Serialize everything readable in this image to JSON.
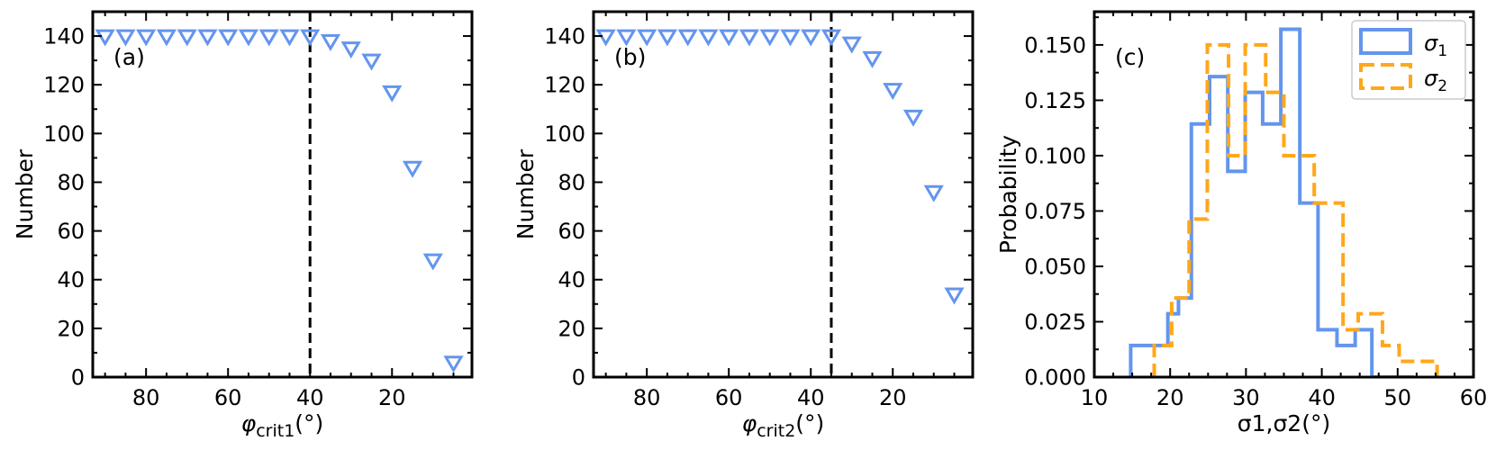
{
  "colors": {
    "marker": "#6495ed",
    "sigma1": "#6495ed",
    "sigma2": "#ffa71a",
    "vline": "#000000"
  },
  "chart_data": [
    {
      "type": "scatter",
      "panel_label": "(a)",
      "xlabel": "φcrit1(°)",
      "xlabel_symbol": "φ",
      "xlabel_sub": "crit1",
      "xlabel_unit": "(°)",
      "ylabel": "Number",
      "xlim": [
        93,
        0.5
      ],
      "ylim": [
        0,
        150
      ],
      "xticks": [
        80,
        60,
        40,
        20
      ],
      "yticks": [
        0,
        20,
        40,
        60,
        80,
        100,
        120,
        140
      ],
      "xtick_labels": [
        "80",
        "60",
        "40",
        "20"
      ],
      "ytick_labels": [
        "0",
        "20",
        "40",
        "60",
        "80",
        "100",
        "120",
        "140"
      ],
      "marker": "triangle-down-open",
      "vline": 40,
      "series": [
        {
          "x": [
            90,
            85,
            80,
            75,
            70,
            65,
            60,
            55,
            50,
            45,
            40,
            35,
            30,
            25,
            20,
            15,
            10,
            5
          ],
          "values": [
            140,
            140,
            140,
            140,
            140,
            140,
            140,
            140,
            140,
            140,
            140,
            138,
            135,
            130,
            117,
            86,
            48,
            6
          ]
        }
      ]
    },
    {
      "type": "scatter",
      "panel_label": "(b)",
      "xlabel": "φcrit2(°)",
      "xlabel_symbol": "φ",
      "xlabel_sub": "crit2",
      "xlabel_unit": "(°)",
      "ylabel": "Number",
      "xlim": [
        93,
        0.5
      ],
      "ylim": [
        0,
        150
      ],
      "xticks": [
        80,
        60,
        40,
        20
      ],
      "yticks": [
        0,
        20,
        40,
        60,
        80,
        100,
        120,
        140
      ],
      "xtick_labels": [
        "80",
        "60",
        "40",
        "20"
      ],
      "ytick_labels": [
        "0",
        "20",
        "40",
        "60",
        "80",
        "100",
        "120",
        "140"
      ],
      "marker": "triangle-down-open",
      "vline": 35,
      "series": [
        {
          "x": [
            90,
            85,
            80,
            75,
            70,
            65,
            60,
            55,
            50,
            45,
            40,
            35,
            30,
            25,
            20,
            15,
            10,
            5
          ],
          "values": [
            140,
            140,
            140,
            140,
            140,
            140,
            140,
            140,
            140,
            140,
            140,
            140,
            137,
            131,
            118,
            107,
            76,
            34
          ]
        }
      ]
    },
    {
      "type": "histogram",
      "panel_label": "(c)",
      "xlabel": "σ1,σ2(°)",
      "ylabel": "Probability",
      "xlim": [
        10,
        60
      ],
      "ylim": [
        0,
        0.165
      ],
      "xticks": [
        10,
        20,
        30,
        40,
        50,
        60
      ],
      "yticks": [
        0,
        0.025,
        0.05,
        0.075,
        0.1,
        0.125,
        0.15
      ],
      "xtick_labels": [
        "10",
        "20",
        "30",
        "40",
        "50",
        "60"
      ],
      "ytick_labels": [
        "0.000",
        "0.025",
        "0.050",
        "0.075",
        "0.100",
        "0.125",
        "0.150"
      ],
      "legend_position": "top-right",
      "series": [
        {
          "name": "σ1",
          "legend_symbol": "σ",
          "legend_sub": "1",
          "line_style": "solid",
          "bin_edges": [
            14.8,
            19.7,
            21.1,
            22.8,
            25.2,
            27.6,
            29.9,
            32.2,
            34.6,
            37.1,
            39.5,
            42.0,
            44.4,
            46.6,
            52.2
          ],
          "values": [
            0.0143,
            0.0286,
            0.0357,
            0.1143,
            0.1357,
            0.0929,
            0.1286,
            0.1143,
            0.1571,
            0.0786,
            0.0214,
            0.0143,
            0.0214,
            0.0
          ]
        },
        {
          "name": "σ2",
          "legend_symbol": "σ",
          "legend_sub": "2",
          "line_style": "dashed",
          "bin_edges": [
            17.9,
            20.2,
            22.5,
            24.9,
            27.7,
            29.9,
            32.6,
            35.0,
            39.0,
            42.8,
            44.8,
            48.0,
            50.2,
            55.2
          ],
          "values": [
            0.0143,
            0.0357,
            0.0714,
            0.15,
            0.1,
            0.15,
            0.1286,
            0.1,
            0.0786,
            0.0214,
            0.0286,
            0.0143,
            0.0071
          ]
        }
      ]
    }
  ]
}
